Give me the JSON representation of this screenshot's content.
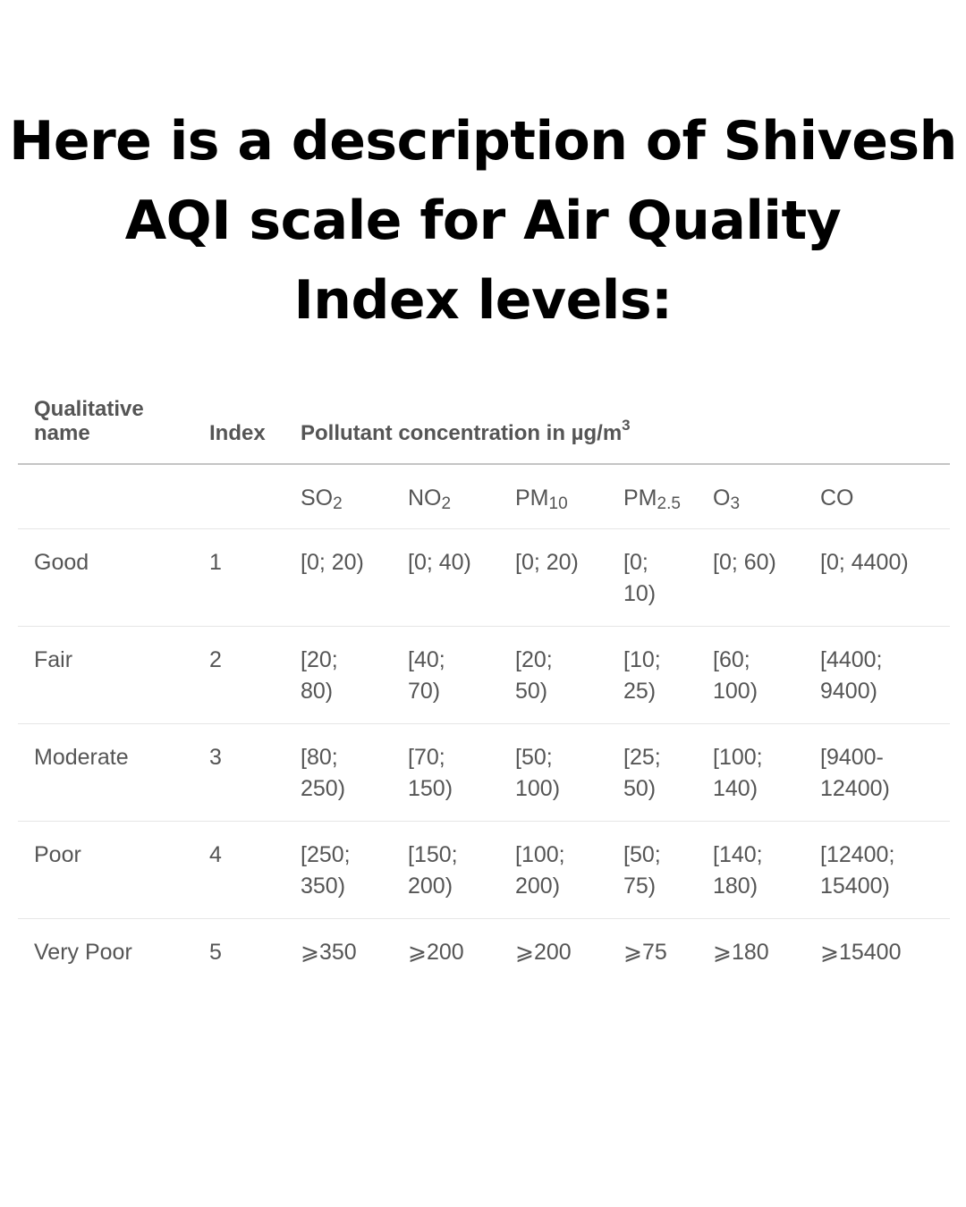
{
  "title": {
    "line1": "Here is a description of Shivesh",
    "line2": "AQI scale for Air Quality",
    "line3": "Index levels:"
  },
  "table": {
    "headers": {
      "qualitative_name": "Qualitative name",
      "index": "Index",
      "pollutant": "Pollutant concentration in µg/m",
      "pollutant_sup": "3"
    },
    "pollutants": [
      {
        "base": "SO",
        "sub": "2"
      },
      {
        "base": "NO",
        "sub": "2"
      },
      {
        "base": "PM",
        "sub": "10"
      },
      {
        "base": "PM",
        "sub": "2.5"
      },
      {
        "base": "O",
        "sub": "3"
      },
      {
        "base": "CO",
        "sub": ""
      }
    ],
    "rows": [
      {
        "name": "Good",
        "index": "1",
        "values": [
          "[0; 20)",
          "[0; 40)",
          "[0; 20)",
          "[0; 10)",
          "[0; 60)",
          "[0; 4400)"
        ]
      },
      {
        "name": "Fair",
        "index": "2",
        "values": [
          "[20; 80)",
          "[40; 70)",
          "[20; 50)",
          "[10; 25)",
          "[60; 100)",
          "[4400; 9400)"
        ]
      },
      {
        "name": "Moderate",
        "index": "3",
        "values": [
          "[80; 250)",
          "[70; 150)",
          "[50; 100)",
          "[25; 50)",
          "[100; 140)",
          "[9400- 12400)"
        ]
      },
      {
        "name": "Poor",
        "index": "4",
        "values": [
          "[250; 350)",
          "[150; 200)",
          "[100; 200)",
          "[50; 75)",
          "[140; 180)",
          "[12400; 15400)"
        ]
      },
      {
        "name": "Very Poor",
        "index": "5",
        "values": [
          "⩾350",
          "⩾200",
          "⩾200",
          "⩾75",
          "⩾180",
          "⩾15400"
        ]
      }
    ]
  }
}
